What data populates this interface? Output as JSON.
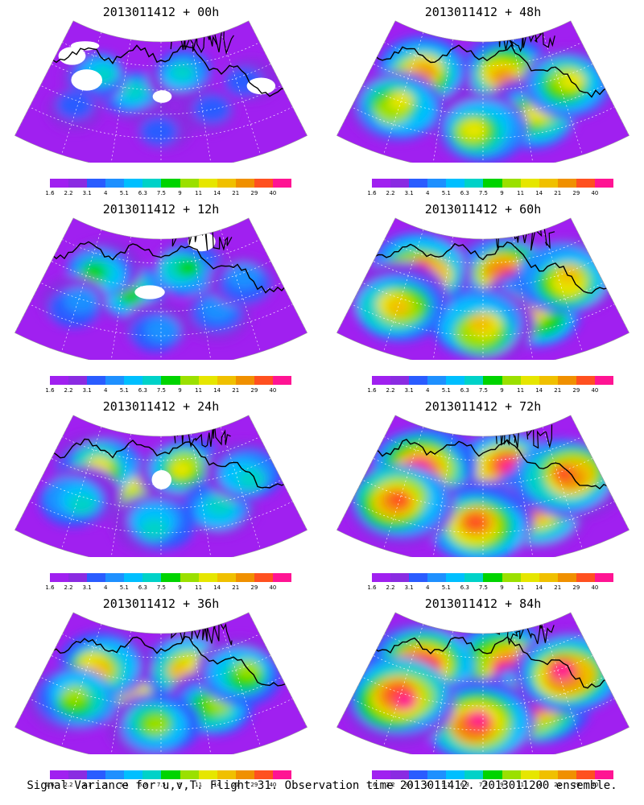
{
  "panels": [
    {
      "title": "2013011412 + 00h",
      "intensity": 0.25
    },
    {
      "title": "2013011412 + 48h",
      "intensity": 0.72
    },
    {
      "title": "2013011412 + 12h",
      "intensity": 0.4
    },
    {
      "title": "2013011412 + 60h",
      "intensity": 0.8
    },
    {
      "title": "2013011412 + 24h",
      "intensity": 0.52
    },
    {
      "title": "2013011412 + 72h",
      "intensity": 0.88
    },
    {
      "title": "2013011412 + 36h",
      "intensity": 0.62
    },
    {
      "title": "2013011412 + 84h",
      "intensity": 0.95
    }
  ],
  "colorbar": {
    "labels": [
      "1.6",
      "2.2",
      "3.1",
      "4",
      "5.1",
      "6.3",
      "7.5",
      "9",
      "11",
      "14",
      "21",
      "29",
      "40"
    ],
    "colors": [
      "#a020f0",
      "#8a2be2",
      "#2a5cff",
      "#1e90ff",
      "#00bfff",
      "#00d2c8",
      "#00d400",
      "#9be000",
      "#e6e600",
      "#f0c000",
      "#f09000",
      "#ff5020",
      "#ff1493"
    ]
  },
  "caption": "Signal Variance for u,v,T. Flight 31. Observation time 2013011412. 2013011200 ensemble."
}
